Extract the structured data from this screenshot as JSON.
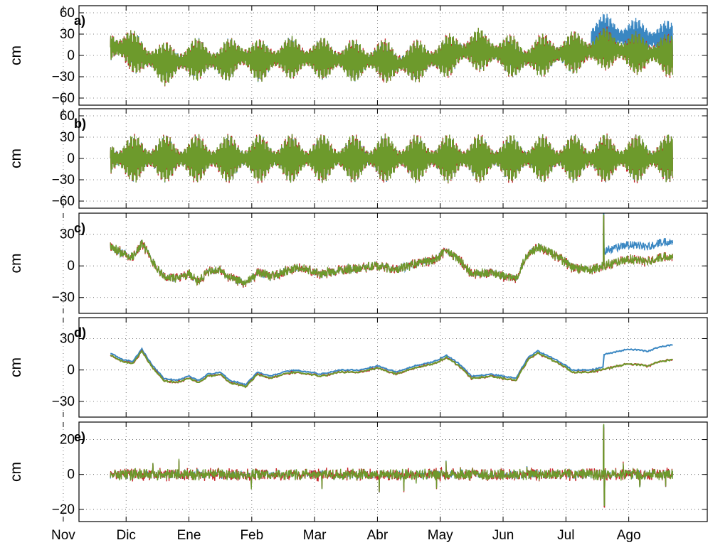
{
  "chart_data": {
    "type": "line",
    "x_months": [
      "Nov",
      "Dic",
      "Ene",
      "Feb",
      "Mar",
      "Abr",
      "May",
      "Jun",
      "Jul",
      "Ago"
    ],
    "series_colors": [
      "#3a87c2",
      "#c8262b",
      "#6d9a2c"
    ],
    "panels": [
      {
        "id": "a",
        "label": "a)",
        "ylabel": "cm",
        "ylim": [
          -70,
          70
        ],
        "yticks": [
          -60,
          -30,
          0,
          30,
          60
        ],
        "ytick_labels": [
          "−60",
          "−30",
          "0",
          "30",
          "60"
        ],
        "kind": "tide",
        "amp_mean": 20,
        "amp_var": 10,
        "lowfreq": [
          [
            0.75,
            12
          ],
          [
            1.0,
            10
          ],
          [
            1.3,
            -3
          ],
          [
            1.6,
            -12
          ],
          [
            1.9,
            -8
          ],
          [
            2.2,
            -4
          ],
          [
            2.5,
            -10
          ],
          [
            2.8,
            0
          ],
          [
            3.1,
            -8
          ],
          [
            3.5,
            -3
          ],
          [
            4.0,
            -4
          ],
          [
            4.4,
            -6
          ],
          [
            4.8,
            -8
          ],
          [
            5.0,
            -5
          ],
          [
            5.3,
            -12
          ],
          [
            5.6,
            -8
          ],
          [
            6.0,
            -4
          ],
          [
            6.3,
            5
          ],
          [
            6.6,
            8
          ],
          [
            7.0,
            2
          ],
          [
            7.3,
            -5
          ],
          [
            7.6,
            0
          ],
          [
            8.0,
            3
          ],
          [
            8.4,
            6
          ],
          [
            8.6,
            10
          ],
          [
            8.9,
            6
          ],
          [
            9.2,
            2
          ],
          [
            9.5,
            3
          ],
          [
            9.7,
            -2
          ]
        ],
        "blue_offset_from": 8.4,
        "blue_offset": 20
      },
      {
        "id": "b",
        "label": "b)",
        "ylabel": "cm",
        "ylim": [
          -70,
          70
        ],
        "yticks": [
          -60,
          -30,
          0,
          30,
          60
        ],
        "ytick_labels": [
          "−60",
          "−30",
          "0",
          "30",
          "60"
        ],
        "kind": "tide",
        "amp_mean": 22,
        "amp_var": 12,
        "lowfreq": [
          [
            0.75,
            0
          ],
          [
            9.7,
            0
          ]
        ],
        "blue_offset_from": 99,
        "blue_offset": 0
      },
      {
        "id": "c",
        "label": "c)",
        "ylabel": "cm",
        "ylim": [
          -45,
          50
        ],
        "yticks": [
          -30,
          0,
          30
        ],
        "ytick_labels": [
          "−30",
          "0",
          "30"
        ],
        "kind": "noisy",
        "noise": 4,
        "lowfreq": [
          [
            0.75,
            18
          ],
          [
            0.95,
            12
          ],
          [
            1.1,
            8
          ],
          [
            1.25,
            22
          ],
          [
            1.4,
            6
          ],
          [
            1.6,
            -10
          ],
          [
            1.8,
            -12
          ],
          [
            2.0,
            -8
          ],
          [
            2.15,
            -14
          ],
          [
            2.3,
            -6
          ],
          [
            2.5,
            -4
          ],
          [
            2.65,
            -12
          ],
          [
            2.8,
            -14
          ],
          [
            2.9,
            -18
          ],
          [
            3.0,
            -12
          ],
          [
            3.1,
            -6
          ],
          [
            3.3,
            -10
          ],
          [
            3.5,
            -6
          ],
          [
            3.7,
            -2
          ],
          [
            3.9,
            -4
          ],
          [
            4.1,
            -8
          ],
          [
            4.4,
            -4
          ],
          [
            4.7,
            -2
          ],
          [
            5.0,
            0
          ],
          [
            5.3,
            -4
          ],
          [
            5.6,
            2
          ],
          [
            5.9,
            6
          ],
          [
            6.1,
            14
          ],
          [
            6.3,
            6
          ],
          [
            6.5,
            -8
          ],
          [
            6.8,
            -6
          ],
          [
            7.0,
            -10
          ],
          [
            7.2,
            -12
          ],
          [
            7.4,
            12
          ],
          [
            7.55,
            18
          ],
          [
            7.7,
            14
          ],
          [
            7.9,
            8
          ],
          [
            8.1,
            -2
          ],
          [
            8.4,
            -4
          ],
          [
            8.7,
            2
          ],
          [
            9.0,
            6
          ],
          [
            9.3,
            4
          ],
          [
            9.5,
            8
          ],
          [
            9.7,
            10
          ]
        ],
        "blue_offset_from": 8.6,
        "blue_offset": 14,
        "spike_at": 8.6,
        "spike_value": 48
      },
      {
        "id": "d",
        "label": "d)",
        "ylabel": "cm",
        "ylim": [
          -45,
          50
        ],
        "yticks": [
          -30,
          0,
          30
        ],
        "ytick_labels": [
          "−30",
          "0",
          "30"
        ],
        "kind": "smooth",
        "noise": 0.6,
        "lowfreq": [
          [
            0.75,
            14
          ],
          [
            0.95,
            8
          ],
          [
            1.1,
            6
          ],
          [
            1.25,
            18
          ],
          [
            1.4,
            4
          ],
          [
            1.6,
            -10
          ],
          [
            1.8,
            -12
          ],
          [
            2.0,
            -8
          ],
          [
            2.15,
            -12
          ],
          [
            2.3,
            -6
          ],
          [
            2.5,
            -4
          ],
          [
            2.65,
            -12
          ],
          [
            2.8,
            -14
          ],
          [
            2.9,
            -16
          ],
          [
            3.0,
            -10
          ],
          [
            3.1,
            -4
          ],
          [
            3.3,
            -8
          ],
          [
            3.5,
            -4
          ],
          [
            3.7,
            -2
          ],
          [
            3.9,
            -4
          ],
          [
            4.1,
            -6
          ],
          [
            4.4,
            -2
          ],
          [
            4.7,
            -2
          ],
          [
            5.0,
            2
          ],
          [
            5.3,
            -4
          ],
          [
            5.6,
            2
          ],
          [
            5.9,
            6
          ],
          [
            6.1,
            12
          ],
          [
            6.3,
            4
          ],
          [
            6.5,
            -8
          ],
          [
            6.8,
            -6
          ],
          [
            7.0,
            -8
          ],
          [
            7.2,
            -10
          ],
          [
            7.4,
            10
          ],
          [
            7.55,
            16
          ],
          [
            7.7,
            12
          ],
          [
            7.9,
            6
          ],
          [
            8.1,
            -2
          ],
          [
            8.4,
            -2
          ],
          [
            8.7,
            2
          ],
          [
            9.0,
            6
          ],
          [
            9.3,
            4
          ],
          [
            9.5,
            8
          ],
          [
            9.7,
            10
          ]
        ],
        "blue_offset_from": 8.6,
        "blue_offset": 12
      },
      {
        "id": "e",
        "label": "e)",
        "ylabel": "cm",
        "ylim": [
          -27,
          30
        ],
        "yticks": [
          -20,
          0,
          20
        ],
        "ytick_labels": [
          "−20",
          "0",
          "20"
        ],
        "kind": "residual",
        "noise": 2.6,
        "lowfreq": [
          [
            0.75,
            0
          ],
          [
            9.7,
            0
          ]
        ],
        "blue_offset_from": 99,
        "blue_offset": 0,
        "spike_at": 8.6,
        "spike_value": 28,
        "spike_min": -18
      }
    ]
  }
}
